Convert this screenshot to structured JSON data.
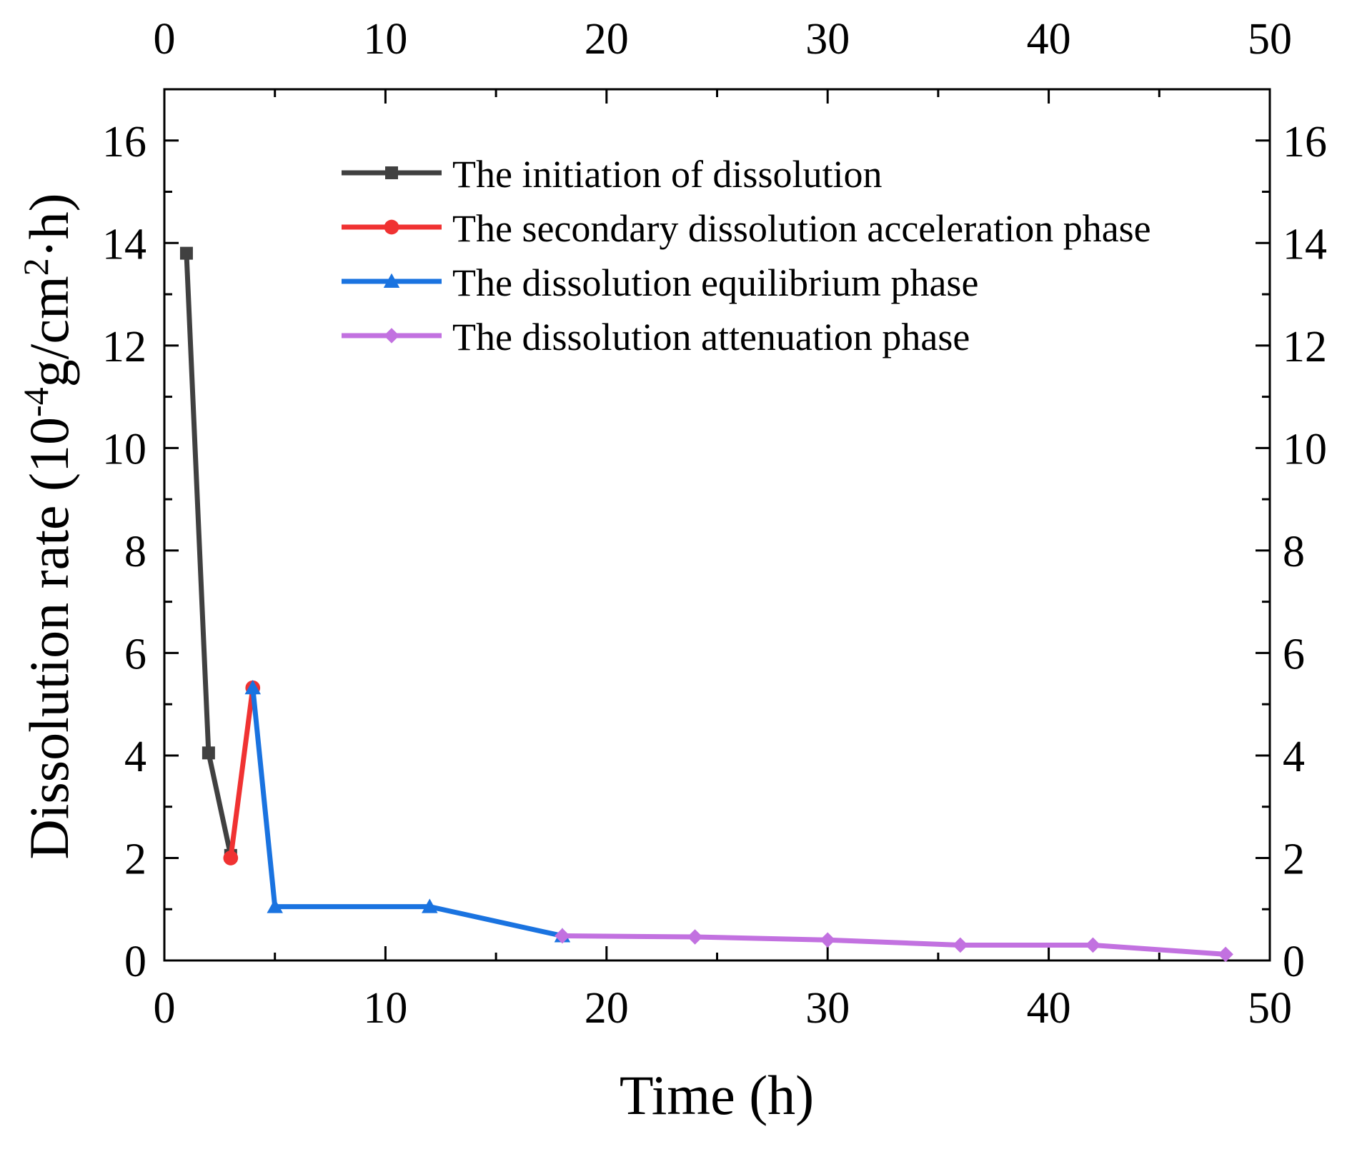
{
  "chart_data": {
    "type": "line",
    "title": "",
    "xlabel": "Time (h)",
    "ylabel": {
      "prefix": "Dissolution rate (10",
      "exp1": "-4",
      "mid": "g/cm",
      "exp2": "2",
      "suffix": "·h)"
    },
    "xlim": [
      0,
      50
    ],
    "ylim": [
      0,
      17
    ],
    "xticks": [
      0,
      10,
      20,
      30,
      40,
      50
    ],
    "xtick_labels": [
      "0",
      "10",
      "20",
      "30",
      "40",
      "50"
    ],
    "yticks": [
      0,
      2,
      4,
      6,
      8,
      10,
      12,
      14,
      16
    ],
    "ytick_labels": [
      "0",
      "2",
      "4",
      "6",
      "8",
      "10",
      "12",
      "14",
      "16"
    ],
    "top_axis_mirrored": true,
    "right_axis_mirrored": true,
    "grid": false,
    "legend_position": "top-center",
    "series": [
      {
        "name": "The initiation of dissolution",
        "color": "#404040",
        "marker": "square",
        "x": [
          1,
          2,
          3
        ],
        "y": [
          13.8,
          4.05,
          2.05
        ]
      },
      {
        "name": "The secondary dissolution acceleration phase",
        "color": "#f03232",
        "marker": "circle",
        "x": [
          3,
          4
        ],
        "y": [
          2.0,
          5.32
        ]
      },
      {
        "name": "The dissolution equilibrium phase",
        "color": "#1a73e0",
        "marker": "triangle",
        "x": [
          4,
          5,
          12,
          18
        ],
        "y": [
          5.32,
          1.05,
          1.05,
          0.48
        ]
      },
      {
        "name": "The dissolution attenuation phase",
        "color": "#c271e0",
        "marker": "diamond",
        "x": [
          18,
          24,
          30,
          36,
          42,
          48
        ],
        "y": [
          0.48,
          0.46,
          0.4,
          0.3,
          0.3,
          0.12
        ]
      }
    ]
  }
}
